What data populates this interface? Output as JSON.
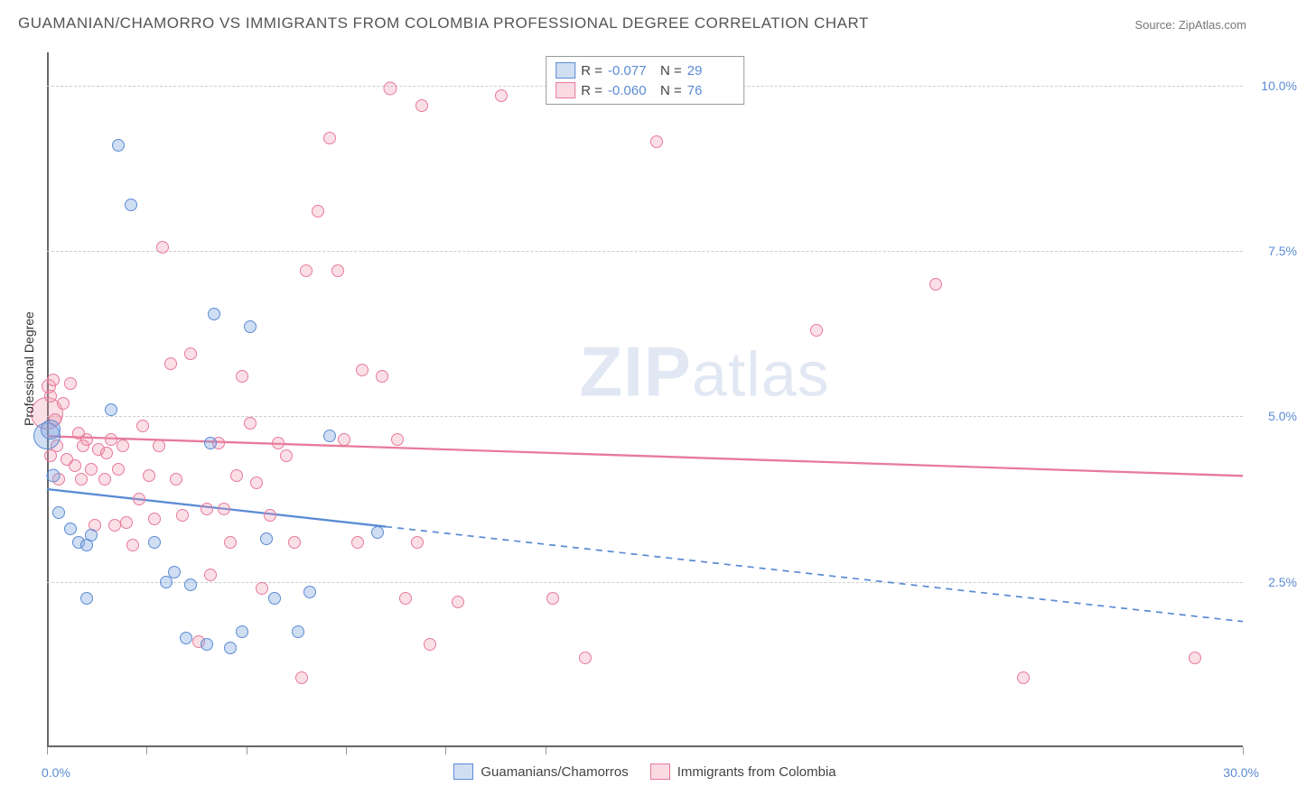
{
  "title": "GUAMANIAN/CHAMORRO VS IMMIGRANTS FROM COLOMBIA PROFESSIONAL DEGREE CORRELATION CHART",
  "source_label": "Source: ",
  "source_site": "ZipAtlas.com",
  "ylabel": "Professional Degree",
  "watermark_a": "ZIP",
  "watermark_b": "atlas",
  "chart": {
    "type": "scatter",
    "xlim": [
      0,
      30
    ],
    "ylim": [
      0,
      10.5
    ],
    "yticks": [
      2.5,
      5.0,
      7.5,
      10.0
    ],
    "ytick_labels": [
      "2.5%",
      "5.0%",
      "7.5%",
      "10.0%"
    ],
    "xticks": [
      0,
      2.5,
      5.0,
      7.5,
      10.0,
      12.5,
      30.0
    ],
    "x_start_label": "0.0%",
    "x_end_label": "30.0%",
    "background_color": "#ffffff",
    "grid_color": "#cccccc",
    "grid_dash": "4,4",
    "axis_label_color": "#5b8bd4",
    "marker_base_size": 14,
    "series": [
      {
        "key": "blue",
        "name": "Guamanians/Chamorros",
        "color": "#5b8bd4",
        "fill": "rgba(120,160,220,0.35)",
        "R": "-0.077",
        "N": "29",
        "trend": {
          "y_at_xmin": 3.9,
          "y_at_xmax": 1.9,
          "solid_until_x": 8.5,
          "dash": "7,6",
          "width": 2.3
        },
        "points": [
          [
            0.0,
            4.7,
            30
          ],
          [
            0.1,
            4.8,
            22
          ],
          [
            0.15,
            4.1,
            15
          ],
          [
            0.3,
            3.55,
            14
          ],
          [
            0.6,
            3.3,
            14
          ],
          [
            0.8,
            3.1,
            14
          ],
          [
            1.0,
            3.05,
            14
          ],
          [
            1.0,
            2.25,
            14
          ],
          [
            1.1,
            3.2,
            14
          ],
          [
            1.6,
            5.1,
            14
          ],
          [
            1.8,
            9.1,
            14
          ],
          [
            2.1,
            8.2,
            14
          ],
          [
            2.7,
            3.1,
            14
          ],
          [
            3.0,
            2.5,
            14
          ],
          [
            3.2,
            2.65,
            14
          ],
          [
            3.5,
            1.65,
            14
          ],
          [
            3.6,
            2.45,
            14
          ],
          [
            4.0,
            1.55,
            14
          ],
          [
            4.1,
            4.6,
            14
          ],
          [
            4.2,
            6.55,
            14
          ],
          [
            4.6,
            1.5,
            14
          ],
          [
            4.9,
            1.75,
            14
          ],
          [
            5.1,
            6.35,
            14
          ],
          [
            5.5,
            3.15,
            14
          ],
          [
            5.7,
            2.25,
            14
          ],
          [
            6.3,
            1.75,
            14
          ],
          [
            6.6,
            2.35,
            14
          ],
          [
            7.1,
            4.7,
            14
          ],
          [
            8.3,
            3.25,
            14
          ]
        ]
      },
      {
        "key": "pink",
        "name": "Immigrants from Colombia",
        "color": "#e77a9b",
        "fill": "rgba(240,150,175,0.30)",
        "R": "-0.060",
        "N": "76",
        "trend": {
          "y_at_xmin": 4.7,
          "y_at_xmax": 4.1,
          "solid_until_x": 30,
          "dash": "",
          "width": 2.3
        },
        "points": [
          [
            0.0,
            5.05,
            36
          ],
          [
            0.05,
            5.45,
            16
          ],
          [
            0.1,
            5.3,
            14
          ],
          [
            0.1,
            4.4,
            14
          ],
          [
            0.15,
            5.55,
            14
          ],
          [
            0.2,
            4.95,
            14
          ],
          [
            0.25,
            4.55,
            14
          ],
          [
            0.3,
            4.05,
            14
          ],
          [
            0.4,
            5.2,
            14
          ],
          [
            0.5,
            4.35,
            14
          ],
          [
            0.6,
            5.5,
            14
          ],
          [
            0.7,
            4.25,
            14
          ],
          [
            0.8,
            4.75,
            14
          ],
          [
            0.85,
            4.05,
            14
          ],
          [
            0.9,
            4.55,
            14
          ],
          [
            1.0,
            4.65,
            14
          ],
          [
            1.1,
            4.2,
            14
          ],
          [
            1.2,
            3.35,
            14
          ],
          [
            1.3,
            4.5,
            14
          ],
          [
            1.45,
            4.05,
            14
          ],
          [
            1.5,
            4.45,
            14
          ],
          [
            1.6,
            4.65,
            14
          ],
          [
            1.7,
            3.35,
            14
          ],
          [
            1.8,
            4.2,
            14
          ],
          [
            1.9,
            4.55,
            14
          ],
          [
            2.0,
            3.4,
            14
          ],
          [
            2.15,
            3.05,
            14
          ],
          [
            2.3,
            3.75,
            14
          ],
          [
            2.4,
            4.85,
            14
          ],
          [
            2.55,
            4.1,
            14
          ],
          [
            2.7,
            3.45,
            14
          ],
          [
            2.8,
            4.55,
            14
          ],
          [
            2.9,
            7.55,
            14
          ],
          [
            3.1,
            5.8,
            14
          ],
          [
            3.25,
            4.05,
            14
          ],
          [
            3.4,
            3.5,
            14
          ],
          [
            3.6,
            5.95,
            14
          ],
          [
            3.8,
            1.6,
            14
          ],
          [
            4.0,
            3.6,
            14
          ],
          [
            4.1,
            2.6,
            14
          ],
          [
            4.3,
            4.6,
            14
          ],
          [
            4.45,
            3.6,
            14
          ],
          [
            4.6,
            3.1,
            14
          ],
          [
            4.75,
            4.1,
            14
          ],
          [
            4.9,
            5.6,
            14
          ],
          [
            5.1,
            4.9,
            14
          ],
          [
            5.25,
            4.0,
            14
          ],
          [
            5.4,
            2.4,
            14
          ],
          [
            5.6,
            3.5,
            14
          ],
          [
            5.8,
            4.6,
            14
          ],
          [
            6.0,
            4.4,
            14
          ],
          [
            6.2,
            3.1,
            14
          ],
          [
            6.4,
            1.05,
            14
          ],
          [
            6.5,
            7.2,
            14
          ],
          [
            6.8,
            8.1,
            14
          ],
          [
            7.1,
            9.2,
            14
          ],
          [
            7.3,
            7.2,
            14
          ],
          [
            7.45,
            4.65,
            14
          ],
          [
            7.8,
            3.1,
            14
          ],
          [
            7.9,
            5.7,
            14
          ],
          [
            8.4,
            5.6,
            14
          ],
          [
            8.6,
            9.95,
            15
          ],
          [
            8.8,
            4.65,
            14
          ],
          [
            9.0,
            2.25,
            14
          ],
          [
            9.3,
            3.1,
            14
          ],
          [
            9.4,
            9.7,
            14
          ],
          [
            9.6,
            1.55,
            14
          ],
          [
            10.3,
            2.2,
            14
          ],
          [
            11.4,
            9.85,
            14
          ],
          [
            12.7,
            2.25,
            14
          ],
          [
            13.5,
            1.35,
            14
          ],
          [
            15.3,
            9.15,
            14
          ],
          [
            19.3,
            6.3,
            14
          ],
          [
            22.3,
            7.0,
            14
          ],
          [
            24.5,
            1.05,
            14
          ],
          [
            28.8,
            1.35,
            14
          ]
        ]
      }
    ]
  },
  "legend_top_labels": {
    "R": "R =",
    "N": "N ="
  }
}
